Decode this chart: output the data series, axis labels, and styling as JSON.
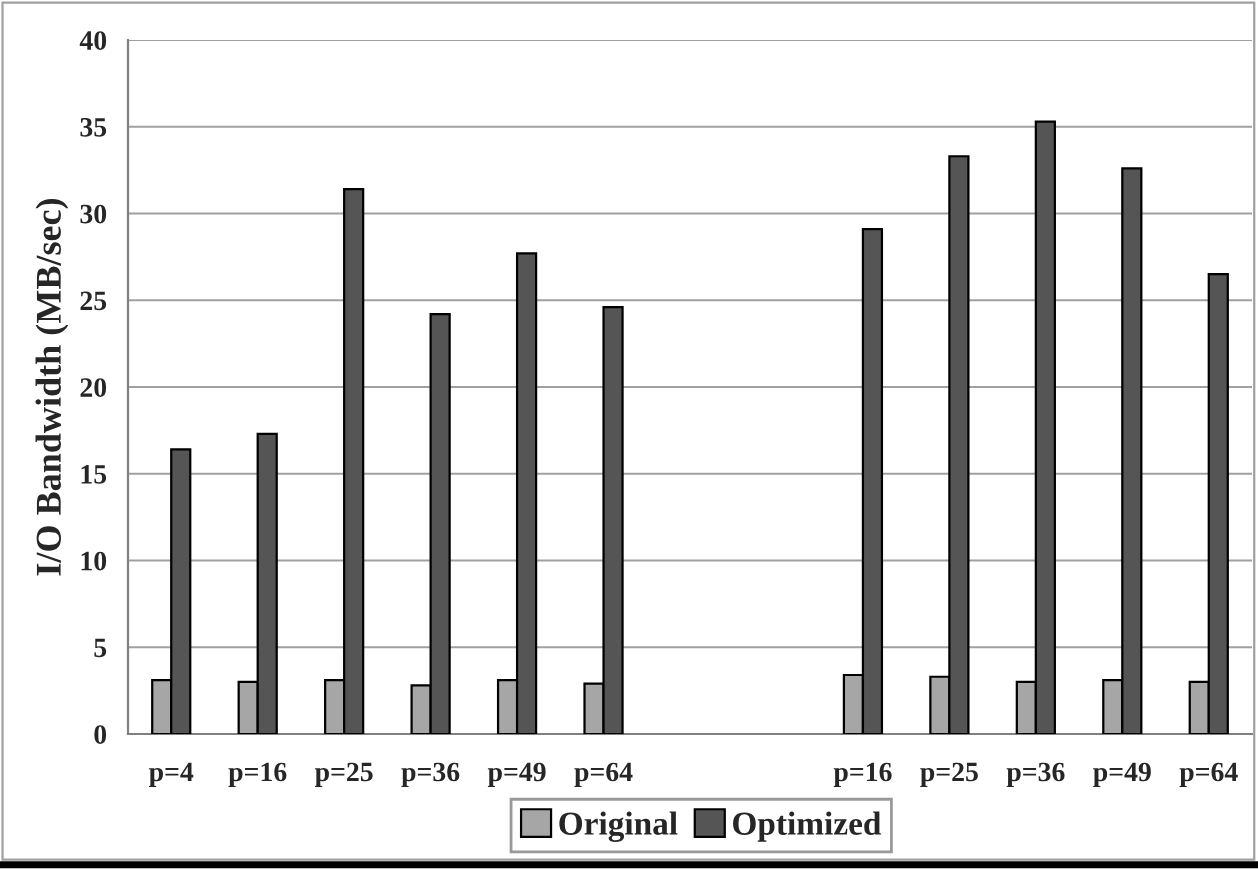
{
  "chart_data": {
    "type": "bar",
    "ylabel": "I/O Bandwidth (MB/sec)",
    "categories": [
      "p=4",
      "p=16",
      "p=25",
      "p=36",
      "p=49",
      "p=64",
      null,
      null,
      "p=16",
      "p=25",
      "p=36",
      "p=49",
      "p=64"
    ],
    "series": [
      {
        "name": "Original",
        "color": "#a6a6a6",
        "values": [
          3.1,
          3.0,
          3.1,
          2.8,
          3.1,
          2.9,
          null,
          null,
          3.4,
          3.3,
          3.0,
          3.1,
          3.0
        ]
      },
      {
        "name": "Optimized",
        "color": "#555555",
        "values": [
          16.4,
          17.3,
          31.4,
          24.2,
          27.7,
          24.6,
          null,
          null,
          29.1,
          33.3,
          35.3,
          32.6,
          26.5
        ]
      }
    ],
    "ylim": [
      0,
      40
    ],
    "yticks": [
      0,
      5,
      10,
      15,
      20,
      25,
      30,
      35,
      40
    ],
    "grid": "y",
    "legend": "bottom"
  }
}
